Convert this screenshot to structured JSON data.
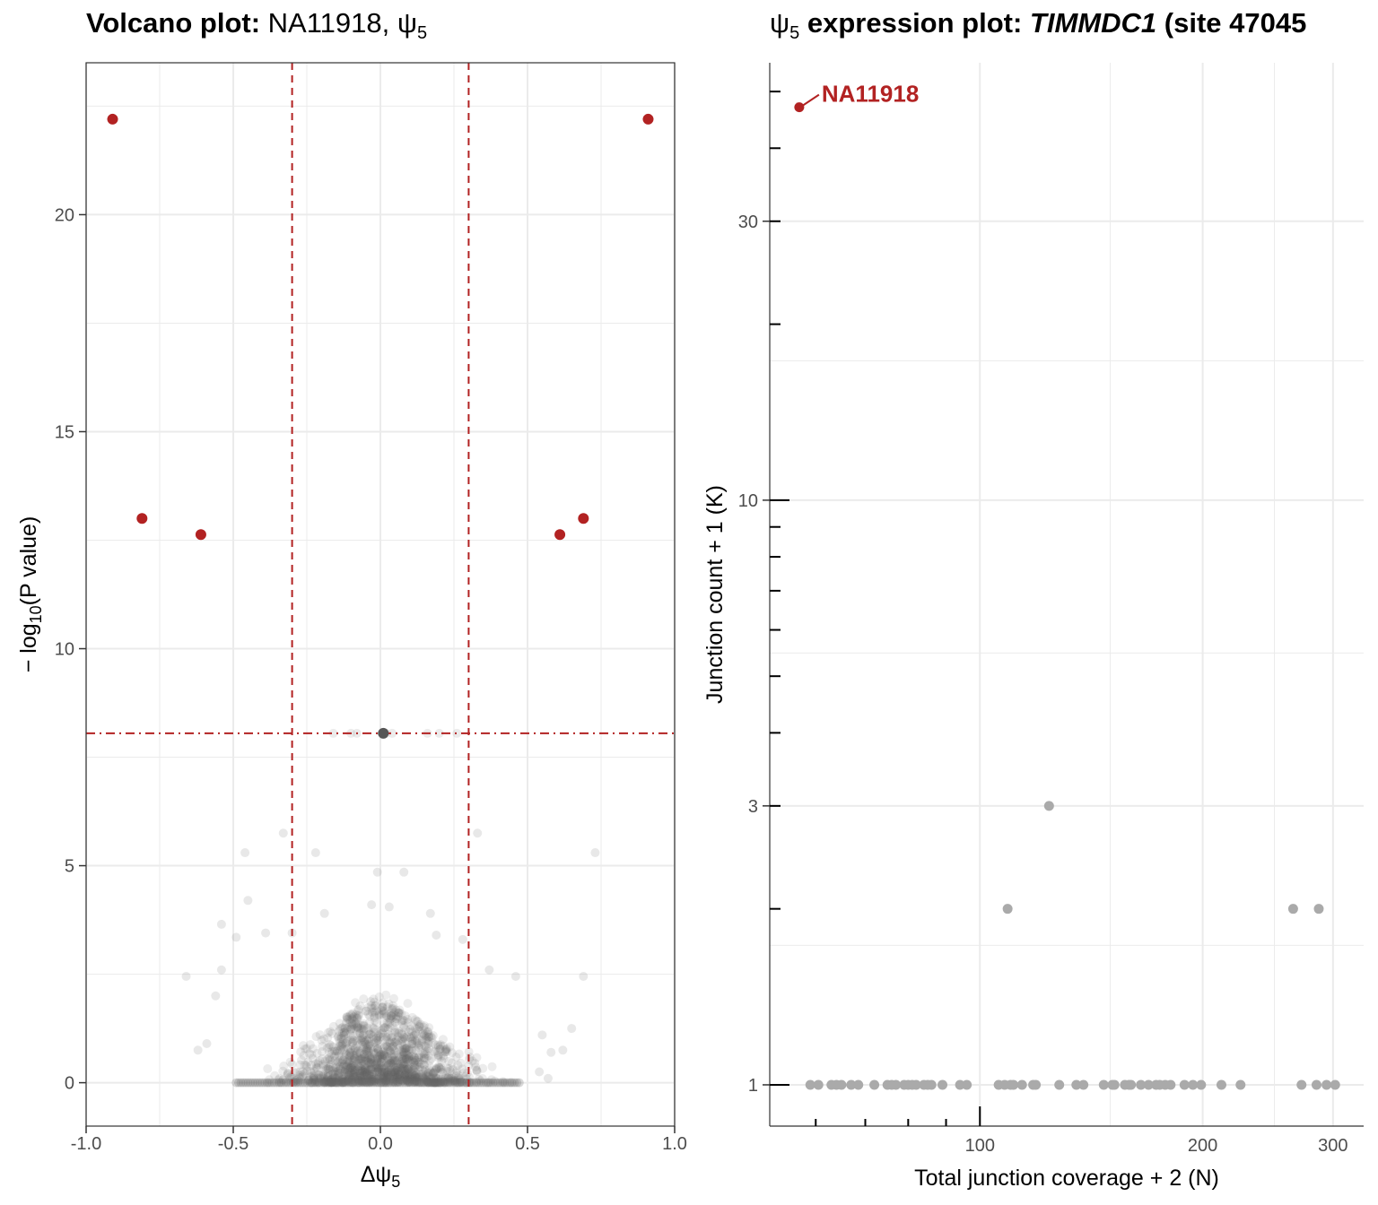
{
  "colors": {
    "highlight": "#b22222",
    "background_points": "#666666",
    "grey_points": "#aaaaaa",
    "grid": "#ebebeb"
  },
  "chart_data": [
    {
      "type": "scatter",
      "title": "Volcano plot:",
      "title_suffix": "NA11918, ψ",
      "title_sub": "5",
      "xlabel": "Δψ",
      "xlabel_sub": "5",
      "ylabel_pre": "− log",
      "ylabel_sub": "10",
      "ylabel_post": "(P value)",
      "xlim": [
        -1.0,
        1.0
      ],
      "ylim": [
        -1.0,
        23.5
      ],
      "xticks": [
        "-1.0",
        "-0.5",
        "0.0",
        "0.5",
        "1.0"
      ],
      "xtick_values": [
        -1.0,
        -0.5,
        0.0,
        0.5,
        1.0
      ],
      "yticks": [
        "0",
        "5",
        "10",
        "15",
        "20"
      ],
      "ytick_values": [
        0,
        5,
        10,
        15,
        20
      ],
      "grid": true,
      "thresholds": {
        "delta_psi": [
          -0.3,
          0.3
        ],
        "neg_log10_p": 8.05
      },
      "highlighted_points": [
        {
          "x": -0.91,
          "y": 22.2
        },
        {
          "x": 0.91,
          "y": 22.2
        },
        {
          "x": -0.81,
          "y": 13.0
        },
        {
          "x": 0.69,
          "y": 13.0
        },
        {
          "x": -0.61,
          "y": 12.63
        },
        {
          "x": 0.61,
          "y": 12.63
        }
      ],
      "threshold_point": {
        "x": 0.01,
        "y": 8.05
      },
      "background_points_sample": [
        {
          "x": -0.33,
          "y": 5.75
        },
        {
          "x": 0.33,
          "y": 5.75
        },
        {
          "x": -0.46,
          "y": 5.3
        },
        {
          "x": -0.22,
          "y": 5.3
        },
        {
          "x": 0.73,
          "y": 5.3
        },
        {
          "x": -0.01,
          "y": 4.85
        },
        {
          "x": 0.08,
          "y": 4.85
        },
        {
          "x": -0.45,
          "y": 4.2
        },
        {
          "x": -0.03,
          "y": 4.1
        },
        {
          "x": 0.03,
          "y": 4.05
        },
        {
          "x": -0.19,
          "y": 3.9
        },
        {
          "x": 0.17,
          "y": 3.9
        },
        {
          "x": -0.54,
          "y": 3.65
        },
        {
          "x": -0.49,
          "y": 3.35
        },
        {
          "x": -0.39,
          "y": 3.45
        },
        {
          "x": -0.3,
          "y": 3.45
        },
        {
          "x": 0.19,
          "y": 3.4
        },
        {
          "x": 0.28,
          "y": 3.3
        },
        {
          "x": -0.66,
          "y": 2.45
        },
        {
          "x": -0.54,
          "y": 2.6
        },
        {
          "x": 0.46,
          "y": 2.45
        },
        {
          "x": 0.69,
          "y": 2.45
        },
        {
          "x": 0.37,
          "y": 2.6
        },
        {
          "x": -0.56,
          "y": 2.0
        },
        {
          "x": -0.62,
          "y": 0.75
        },
        {
          "x": -0.59,
          "y": 0.9
        },
        {
          "x": 0.58,
          "y": 0.7
        },
        {
          "x": 0.62,
          "y": 0.75
        },
        {
          "x": 0.65,
          "y": 1.25
        },
        {
          "x": 0.55,
          "y": 1.1
        },
        {
          "x": 0.54,
          "y": 0.25
        },
        {
          "x": 0.57,
          "y": 0.1
        }
      ]
    },
    {
      "type": "scatter",
      "title_prefix": "ψ",
      "title_sub": "5",
      "title": "expression plot:",
      "title_gene": "TIMMDC1",
      "title_rest": "(site 47045",
      "xlabel": "Total junction coverage + 2 (N)",
      "ylabel": "Junction count + 1 (K)",
      "x_scale": "log",
      "y_scale": "log",
      "xlim": [
        52,
        330
      ],
      "ylim": [
        0.85,
        56
      ],
      "xticks": [
        "100",
        "200",
        "300"
      ],
      "xtick_values": [
        100,
        200,
        300
      ],
      "yticks": [
        "1",
        "3",
        "10",
        "30"
      ],
      "ytick_values": [
        1,
        3,
        10,
        30
      ],
      "grid": true,
      "annotation": "NA11918",
      "highlighted_point": {
        "x": 57,
        "y": 47
      },
      "points": [
        {
          "x": 124,
          "y": 3
        },
        {
          "x": 109,
          "y": 2
        },
        {
          "x": 265,
          "y": 2
        },
        {
          "x": 287,
          "y": 2
        },
        {
          "x": 59,
          "y": 1
        },
        {
          "x": 60.5,
          "y": 1
        },
        {
          "x": 63,
          "y": 1
        },
        {
          "x": 64,
          "y": 1
        },
        {
          "x": 65,
          "y": 1
        },
        {
          "x": 67,
          "y": 1
        },
        {
          "x": 68.5,
          "y": 1
        },
        {
          "x": 72,
          "y": 1
        },
        {
          "x": 75,
          "y": 1
        },
        {
          "x": 76,
          "y": 1
        },
        {
          "x": 77,
          "y": 1
        },
        {
          "x": 79,
          "y": 1
        },
        {
          "x": 80,
          "y": 1
        },
        {
          "x": 81,
          "y": 1
        },
        {
          "x": 82,
          "y": 1
        },
        {
          "x": 84,
          "y": 1
        },
        {
          "x": 85,
          "y": 1
        },
        {
          "x": 86,
          "y": 1
        },
        {
          "x": 89,
          "y": 1
        },
        {
          "x": 94,
          "y": 1
        },
        {
          "x": 96,
          "y": 1
        },
        {
          "x": 106,
          "y": 1
        },
        {
          "x": 108,
          "y": 1
        },
        {
          "x": 110,
          "y": 1
        },
        {
          "x": 111,
          "y": 1
        },
        {
          "x": 114,
          "y": 1
        },
        {
          "x": 118,
          "y": 1
        },
        {
          "x": 119,
          "y": 1
        },
        {
          "x": 128,
          "y": 1
        },
        {
          "x": 135,
          "y": 1
        },
        {
          "x": 138,
          "y": 1
        },
        {
          "x": 147,
          "y": 1
        },
        {
          "x": 151,
          "y": 1
        },
        {
          "x": 152,
          "y": 1
        },
        {
          "x": 157,
          "y": 1
        },
        {
          "x": 159,
          "y": 1
        },
        {
          "x": 160,
          "y": 1
        },
        {
          "x": 165,
          "y": 1
        },
        {
          "x": 169,
          "y": 1
        },
        {
          "x": 173,
          "y": 1
        },
        {
          "x": 175,
          "y": 1
        },
        {
          "x": 178,
          "y": 1
        },
        {
          "x": 181,
          "y": 1
        },
        {
          "x": 189,
          "y": 1
        },
        {
          "x": 194,
          "y": 1
        },
        {
          "x": 199,
          "y": 1
        },
        {
          "x": 212,
          "y": 1
        },
        {
          "x": 225,
          "y": 1
        },
        {
          "x": 272,
          "y": 1
        },
        {
          "x": 285,
          "y": 1
        },
        {
          "x": 294,
          "y": 1
        },
        {
          "x": 302,
          "y": 1
        }
      ]
    }
  ]
}
